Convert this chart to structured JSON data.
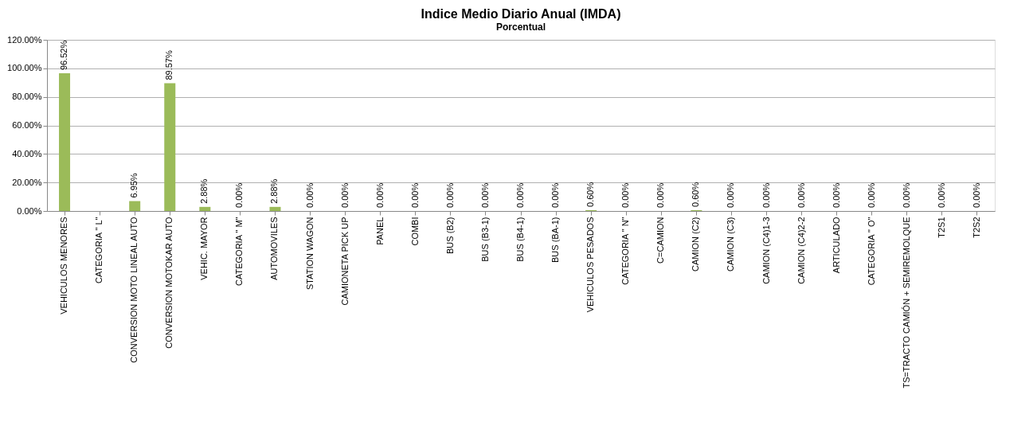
{
  "chart_data": {
    "type": "bar",
    "title": "Indice Medio Diario Anual (IMDA)",
    "subtitle": "Porcentual",
    "categories": [
      "VEHICULOS MENORES",
      "CATEGORIA  \" L\"",
      "CONVERSION MOTO LINEAL AUTO",
      "CONVERSION MOTOKAR AUTO",
      "VEHIC. MAYOR",
      "CATEGORIA  \" M\"",
      "AUTOMOVILES",
      "STATION WAGON",
      "CAMIONETA PICK UP",
      "PANEL",
      "COMBI",
      "BUS  (B2)",
      "BUS  (B3-1)",
      "BUS  (B4-1)",
      "BUS (BA-1)",
      "VEHICULOS PESADOS",
      "CATEGORIA  \" N\"",
      "C=CAMION",
      "CAMION (C2)",
      "CAMION (C3)",
      "CAMION (C4)1-3",
      "CAMION (C4)2-2",
      "ARTICULADO",
      "CATEGORIA  \" O\"",
      "TS=TRACTO CAMIÓN + SEMIREMOLQUE",
      "T2S1",
      "T2S2"
    ],
    "values": [
      96.52,
      null,
      6.95,
      89.57,
      2.88,
      0.0,
      2.88,
      0.0,
      0.0,
      0.0,
      0.0,
      0.0,
      0.0,
      0.0,
      0.0,
      0.6,
      0.0,
      0.0,
      0.6,
      0.0,
      0.0,
      0.0,
      0.0,
      0.0,
      0.0,
      0.0,
      0.0
    ],
    "value_labels": [
      "96.52%",
      null,
      "6.95%",
      "89.57%",
      "2.88%",
      "0.00%",
      "2.88%",
      "0.00%",
      "0.00%",
      "0.00%",
      "0.00%",
      "0.00%",
      "0.00%",
      "0.00%",
      "0.00%",
      "0.60%",
      "0.00%",
      "0.00%",
      "0.60%",
      "0.00%",
      "0.00%",
      "0.00%",
      "0.00%",
      "0.00%",
      "0.00%",
      "0.00%",
      "0.00%"
    ],
    "color": "#9bbb59",
    "ylim": [
      0,
      120
    ],
    "yticks": [
      {
        "value": 0,
        "label": "0.00%"
      },
      {
        "value": 20,
        "label": "20.00%"
      },
      {
        "value": 40,
        "label": "40.00%"
      },
      {
        "value": 60,
        "label": "60.00%"
      },
      {
        "value": 80,
        "label": "80.00%"
      },
      {
        "value": 100,
        "label": "100.00%"
      },
      {
        "value": 120,
        "label": "120.00%"
      }
    ],
    "grid": "y"
  }
}
